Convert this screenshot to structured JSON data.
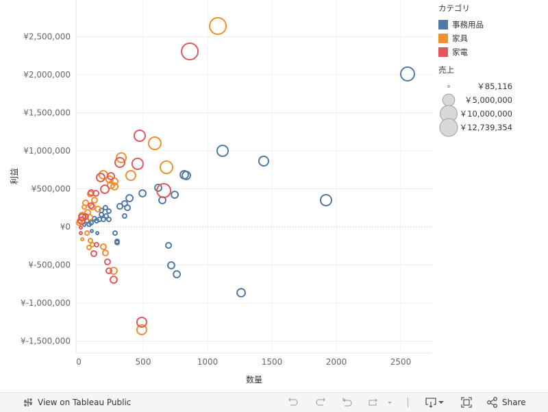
{
  "chart_data": {
    "type": "scatter",
    "xlabel": "数量",
    "ylabel": "利益",
    "xlim": [
      -20,
      2750
    ],
    "ylim": [
      -1650000,
      2980000
    ],
    "x_ticks": [
      0,
      500,
      1000,
      1500,
      2000,
      2500
    ],
    "x_tick_labels": [
      "0",
      "500",
      "1000",
      "1500",
      "2000",
      "2500"
    ],
    "y_ticks": [
      2500000,
      2000000,
      1500000,
      1000000,
      500000,
      0,
      -500000,
      -1000000,
      -1500000
    ],
    "y_tick_labels": [
      "¥2,500,000",
      "¥2,000,000",
      "¥1,500,000",
      "¥1,000,000",
      "¥500,000",
      "¥0",
      "¥-500,000",
      "¥-1,000,000",
      "¥-1,500,000"
    ],
    "grid": true,
    "legend_placement": "right",
    "color_legend": {
      "title": "カテゴリ",
      "entries": [
        {
          "name": "事務用品",
          "color": "#4e79a7"
        },
        {
          "name": "家具",
          "color": "#f28e2b"
        },
        {
          "name": "家電",
          "color": "#e15759"
        }
      ]
    },
    "size_legend": {
      "title": "売上",
      "entries": [
        {
          "label": "￥85,116",
          "value": 85116
        },
        {
          "label": "￥5,000,000",
          "value": 5000000
        },
        {
          "label": "￥10,000,000",
          "value": 10000000
        },
        {
          "label": "￥12,739,354",
          "value": 12739354
        }
      ]
    },
    "series": [
      {
        "name": "事務用品",
        "points_qty_profit_sales": [
          [
            2553,
            2010000,
            6500000
          ],
          [
            1117,
            1000000,
            4200000
          ],
          [
            1436,
            865000,
            3200000
          ],
          [
            1920,
            351000,
            4200000
          ],
          [
            819,
            685000,
            2300000
          ],
          [
            835,
            676000,
            2300000
          ],
          [
            1261,
            -865000,
            2300000
          ],
          [
            697,
            -243000,
            1040000
          ],
          [
            718,
            -505000,
            1600000
          ],
          [
            761,
            -622000,
            1600000
          ],
          [
            495,
            441000,
            1600000
          ],
          [
            617,
            514000,
            1600000
          ],
          [
            649,
            351000,
            1600000
          ],
          [
            745,
            423000,
            1600000
          ],
          [
            394,
            378000,
            1600000
          ],
          [
            378,
            252000,
            1040000
          ],
          [
            356,
            306000,
            1040000
          ],
          [
            319,
            270000,
            1040000
          ],
          [
            356,
            144000,
            580000
          ],
          [
            282,
            -81000,
            580000
          ],
          [
            298,
            -189000,
            580000
          ],
          [
            298,
            -207000,
            580000
          ],
          [
            234,
            99000,
            580000
          ],
          [
            213,
            144000,
            580000
          ],
          [
            234,
            207000,
            580000
          ],
          [
            207,
            252000,
            580000
          ],
          [
            176,
            216000,
            580000
          ],
          [
            191,
            99000,
            580000
          ],
          [
            160,
            99000,
            580000
          ],
          [
            144,
            -81000,
            260000
          ],
          [
            101,
            -54000,
            260000
          ],
          [
            43,
            27000,
            260000
          ],
          [
            80,
            36000,
            580000
          ],
          [
            122,
            108000,
            580000
          ],
          [
            64,
            81000,
            580000
          ],
          [
            138,
            81000,
            580000
          ],
          [
            96,
            54000,
            580000
          ],
          [
            176,
            162000,
            580000
          ]
        ]
      },
      {
        "name": "家具",
        "points_qty_profit_sales": [
          [
            1080,
            2640000,
            9400000
          ],
          [
            590,
            1099000,
            5300000
          ],
          [
            681,
            784000,
            5300000
          ],
          [
            404,
            676000,
            3200000
          ],
          [
            330,
            910000,
            3200000
          ],
          [
            489,
            -1351000,
            3200000
          ],
          [
            191,
            685000,
            2300000
          ],
          [
            239,
            622000,
            1600000
          ],
          [
            277,
            595000,
            1600000
          ],
          [
            277,
            532000,
            1600000
          ],
          [
            250,
            550000,
            1600000
          ],
          [
            90,
            432000,
            1040000
          ],
          [
            122,
            351000,
            1040000
          ],
          [
            106,
            261000,
            1040000
          ],
          [
            43,
            261000,
            580000
          ],
          [
            27,
            144000,
            1600000
          ],
          [
            64,
            -81000,
            580000
          ],
          [
            27,
            -162000,
            260000
          ],
          [
            90,
            -180000,
            580000
          ],
          [
            80,
            -270000,
            580000
          ],
          [
            106,
            -234000,
            580000
          ],
          [
            191,
            -261000,
            1040000
          ],
          [
            207,
            -342000,
            1040000
          ],
          [
            271,
            -577000,
            1600000
          ],
          [
            5,
            54000,
            1040000
          ],
          [
            5,
            81000,
            580000
          ],
          [
            69,
            189000,
            1040000
          ],
          [
            149,
            234000,
            1040000
          ],
          [
            53,
            315000,
            1040000
          ],
          [
            85,
            126000,
            1040000
          ]
        ]
      },
      {
        "name": "家電",
        "points_qty_profit_sales": [
          [
            862,
            2306000,
            9400000
          ],
          [
            473,
            1198000,
            4200000
          ],
          [
            319,
            847000,
            3200000
          ],
          [
            457,
            829000,
            4200000
          ],
          [
            660,
            477000,
            6500000
          ],
          [
            489,
            -1252000,
            3200000
          ],
          [
            170,
            649000,
            2300000
          ],
          [
            250,
            667000,
            1600000
          ],
          [
            202,
            495000,
            2300000
          ],
          [
            96,
            450000,
            1040000
          ],
          [
            133,
            441000,
            1040000
          ],
          [
            96,
            279000,
            1040000
          ],
          [
            27,
            126000,
            1600000
          ],
          [
            16,
            -9000,
            260000
          ],
          [
            16,
            -81000,
            260000
          ],
          [
            138,
            -234000,
            580000
          ],
          [
            117,
            -351000,
            1040000
          ],
          [
            223,
            -459000,
            1040000
          ],
          [
            234,
            -577000,
            1040000
          ],
          [
            271,
            -694000,
            1600000
          ],
          [
            21,
            81000,
            1600000
          ],
          [
            53,
            135000,
            1040000
          ]
        ]
      }
    ]
  },
  "toolbar": {
    "view_on_tableau": "View on Tableau Public",
    "share": "Share"
  }
}
